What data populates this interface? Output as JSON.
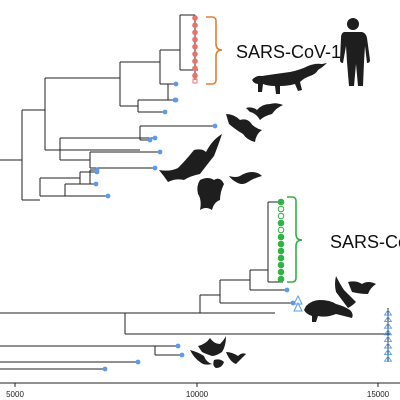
{
  "clades": {
    "sars_cov_1": {
      "label": "SARS-CoV-1",
      "bracket_color": "#e87e32",
      "marker_color": "#e8726c"
    },
    "sars_cov_2": {
      "label": "SARS-CoV",
      "bracket_color": "#2fb344",
      "marker_color": "#2fb344"
    }
  },
  "tip_color": "#5b9be8",
  "x_axis": {
    "ticks": [
      "5000",
      "10000",
      "15000"
    ]
  },
  "silhouettes": {
    "human": "human-silhouette",
    "civet": "civet-silhouette",
    "bats": "bat-silhouette",
    "pangolin": "pangolin-silhouette"
  }
}
